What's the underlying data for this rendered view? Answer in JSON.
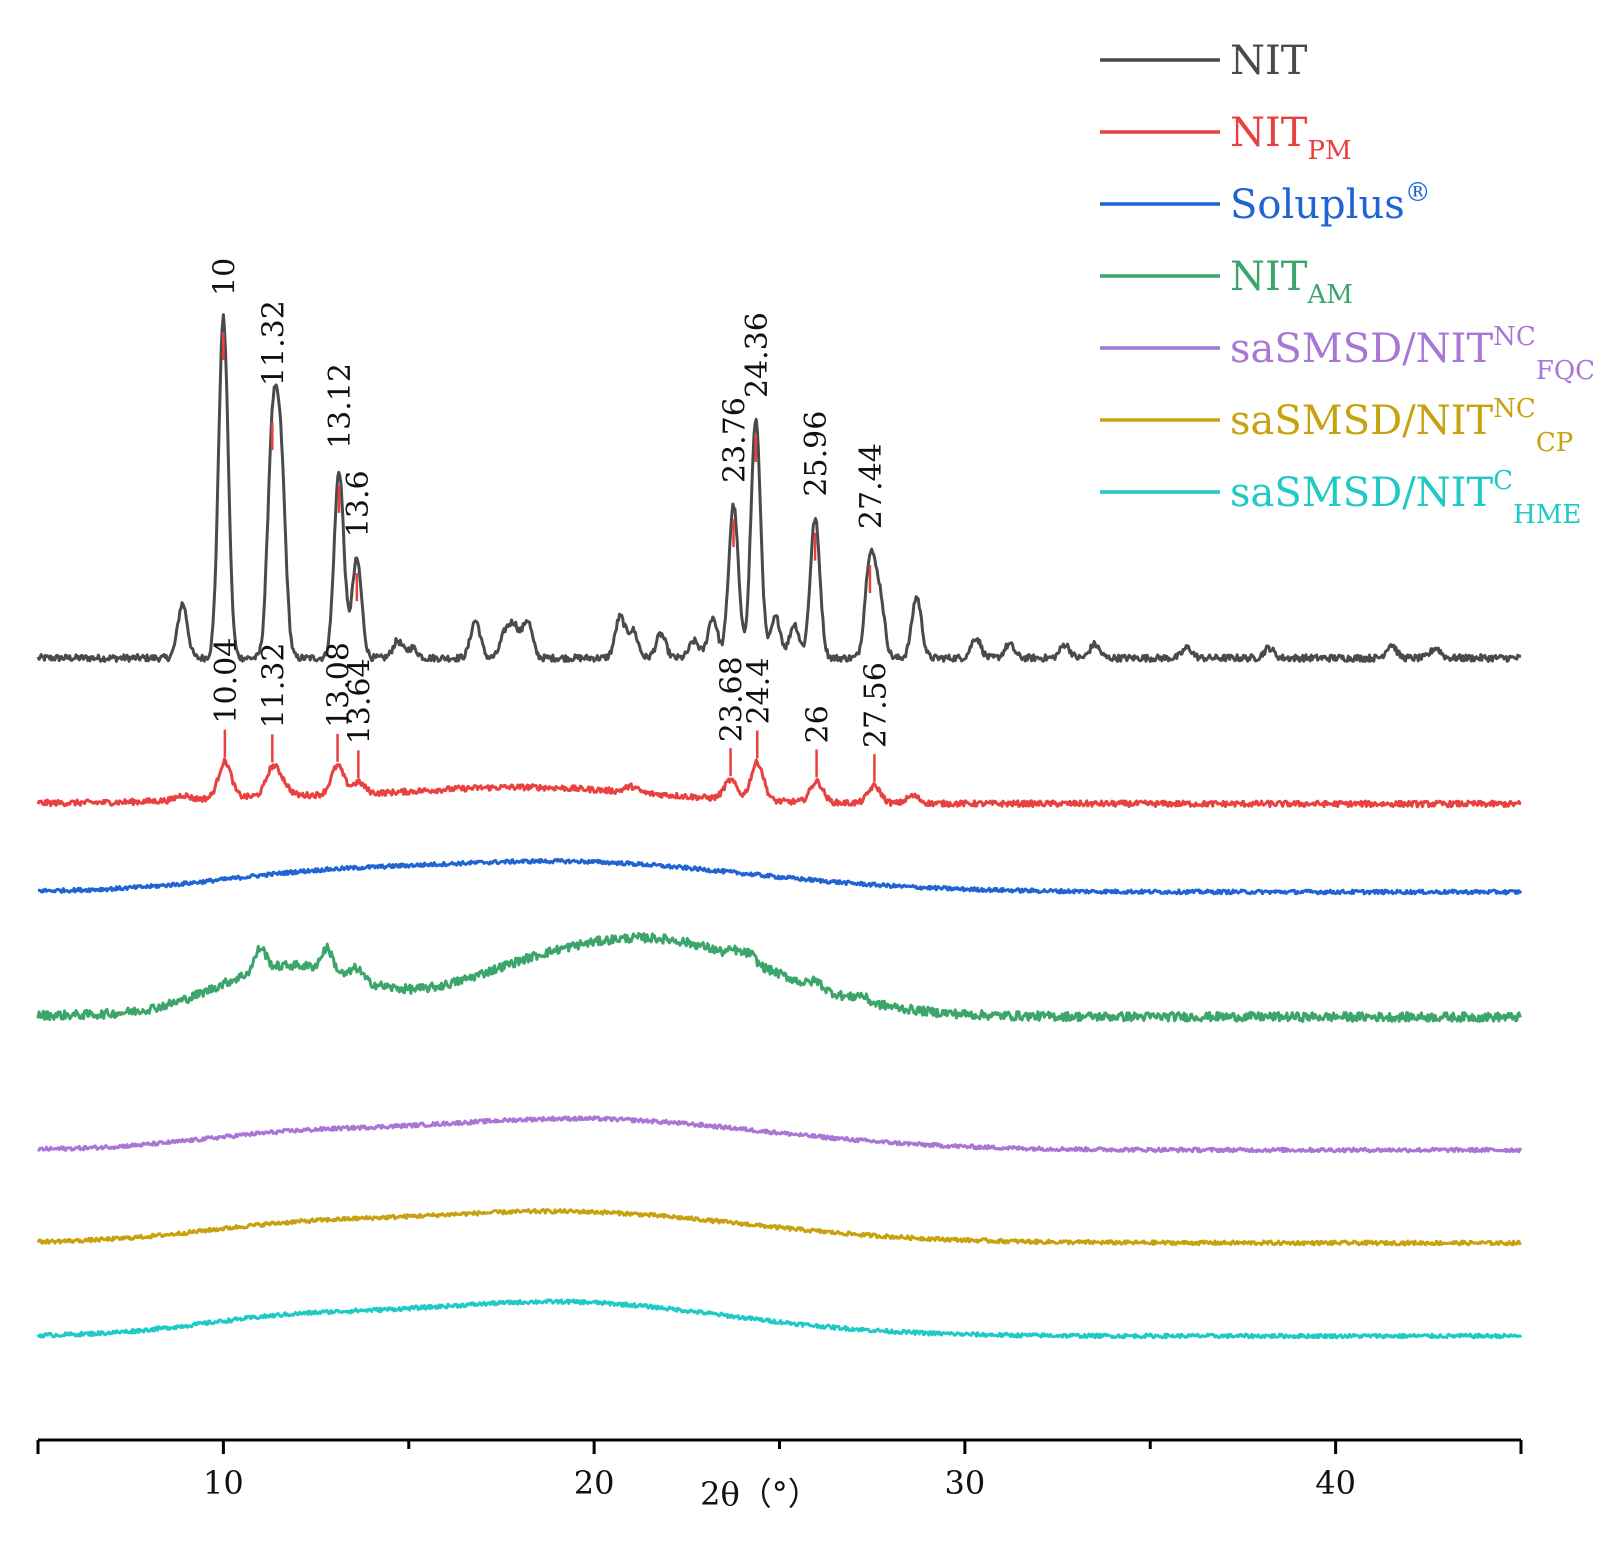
{
  "chart_data": {
    "type": "line",
    "title": "",
    "xlabel": "2θ（°）",
    "ylabel": "",
    "xlim": [
      5,
      45
    ],
    "xticks": [
      10,
      20,
      30,
      40
    ],
    "xtick_labels": [
      "10",
      "20",
      "30",
      "40"
    ],
    "grid": false,
    "legend_position": "top-right",
    "series": [
      {
        "name": "NIT",
        "sub": "",
        "sup": "",
        "color": "#4a4a4a",
        "peaks": [
          [
            8.9,
            0.16
          ],
          [
            10.0,
            1.0
          ],
          [
            11.32,
            0.62
          ],
          [
            11.55,
            0.55
          ],
          [
            13.12,
            0.55
          ],
          [
            13.6,
            0.29
          ],
          [
            14.7,
            0.05
          ],
          [
            15.1,
            0.03
          ],
          [
            16.8,
            0.11
          ],
          [
            17.6,
            0.07
          ],
          [
            17.85,
            0.09
          ],
          [
            18.2,
            0.11
          ],
          [
            20.7,
            0.12
          ],
          [
            21.05,
            0.08
          ],
          [
            21.8,
            0.07
          ],
          [
            22.7,
            0.05
          ],
          [
            23.2,
            0.12
          ],
          [
            23.76,
            0.45
          ],
          [
            24.36,
            0.7
          ],
          [
            24.9,
            0.12
          ],
          [
            25.4,
            0.1
          ],
          [
            25.96,
            0.41
          ],
          [
            27.44,
            0.29
          ],
          [
            27.7,
            0.18
          ],
          [
            28.7,
            0.18
          ],
          [
            30.3,
            0.06
          ],
          [
            31.2,
            0.04
          ],
          [
            32.7,
            0.04
          ],
          [
            33.5,
            0.04
          ],
          [
            36.0,
            0.03
          ],
          [
            38.2,
            0.03
          ],
          [
            41.5,
            0.04
          ],
          [
            42.7,
            0.03
          ]
        ],
        "hump": [],
        "baseline_left": 0,
        "baseline_right": 0,
        "noise": 0.01
      },
      {
        "name": "NIT",
        "sub": "PM",
        "sup": "",
        "color": "#e8413f",
        "peaks": [
          [
            8.9,
            0.05
          ],
          [
            10.04,
            0.38
          ],
          [
            11.32,
            0.28
          ],
          [
            11.6,
            0.12
          ],
          [
            13.08,
            0.3
          ],
          [
            13.64,
            0.12
          ],
          [
            21.0,
            0.06
          ],
          [
            23.68,
            0.2
          ],
          [
            24.4,
            0.4
          ],
          [
            26.0,
            0.22
          ],
          [
            27.56,
            0.18
          ],
          [
            28.6,
            0.08
          ]
        ],
        "hump": [
          [
            18.0,
            3.5,
            0.17
          ],
          [
            11.0,
            2.0,
            0.05
          ]
        ],
        "baseline_left": 0.05,
        "baseline_right": 0,
        "noise": 0.03
      },
      {
        "name": "Soluplus",
        "sub": "",
        "sup": "®",
        "color": "#1f64d2",
        "peaks": [],
        "hump": [
          [
            19.0,
            5.0,
            0.32
          ],
          [
            12.0,
            2.5,
            0.09
          ]
        ],
        "baseline_left": 0.02,
        "baseline_right": 0,
        "noise": 0.02
      },
      {
        "name": "NIT",
        "sub": "AM",
        "sup": "",
        "color": "#3ba56a",
        "peaks": [
          [
            11.0,
            0.2
          ],
          [
            12.8,
            0.2
          ],
          [
            13.6,
            0.1
          ],
          [
            23.8,
            0.06
          ],
          [
            24.2,
            0.08
          ],
          [
            26.0,
            0.06
          ],
          [
            27.2,
            0.05
          ]
        ],
        "hump": [
          [
            21.5,
            3.2,
            0.7
          ],
          [
            11.8,
            1.9,
            0.45
          ],
          [
            17.5,
            1.8,
            0.12
          ]
        ],
        "baseline_left": 0.12,
        "baseline_right": 0.04,
        "noise": 0.04
      },
      {
        "name": "saSMSD/NIT",
        "sub": "FQC",
        "sup": "NC",
        "color": "#a877d6",
        "peaks": [],
        "hump": [
          [
            19.5,
            5.0,
            0.33
          ],
          [
            11.5,
            2.5,
            0.1
          ]
        ],
        "baseline_left": 0,
        "baseline_right": 0,
        "noise": 0.02
      },
      {
        "name": "saSMSD/NIT",
        "sub": "CP",
        "sup": "NC",
        "color": "#c8a20e",
        "peaks": [],
        "hump": [
          [
            19.0,
            5.0,
            0.33
          ],
          [
            11.5,
            2.5,
            0.1
          ]
        ],
        "baseline_left": 0.02,
        "baseline_right": 0,
        "noise": 0.02
      },
      {
        "name": "saSMSD/NIT",
        "sub": "HME",
        "sup": "C",
        "color": "#1ec9c6",
        "peaks": [],
        "hump": [
          [
            19.0,
            4.5,
            0.36
          ],
          [
            11.5,
            2.5,
            0.13
          ]
        ],
        "baseline_left": 0,
        "baseline_right": 0,
        "noise": 0.02
      }
    ],
    "peak_labels": [
      {
        "series": 0,
        "x": 10,
        "text": "10"
      },
      {
        "series": 0,
        "x": 11.32,
        "text": "11.32"
      },
      {
        "series": 0,
        "x": 13.12,
        "text": "13.12"
      },
      {
        "series": 0,
        "x": 13.6,
        "text": "13.6"
      },
      {
        "series": 0,
        "x": 23.76,
        "text": "23.76"
      },
      {
        "series": 0,
        "x": 24.36,
        "text": "24.36"
      },
      {
        "series": 0,
        "x": 25.96,
        "text": "25.96"
      },
      {
        "series": 0,
        "x": 27.44,
        "text": "27.44"
      },
      {
        "series": 1,
        "x": 10.04,
        "text": "10.04"
      },
      {
        "series": 1,
        "x": 11.32,
        "text": "11.32"
      },
      {
        "series": 1,
        "x": 13.08,
        "text": "13.08"
      },
      {
        "series": 1,
        "x": 13.64,
        "text": "13.64"
      },
      {
        "series": 1,
        "x": 23.68,
        "text": "23.68"
      },
      {
        "series": 1,
        "x": 24.4,
        "text": "24.4"
      },
      {
        "series": 1,
        "x": 26,
        "text": "26"
      },
      {
        "series": 1,
        "x": 27.56,
        "text": "27.56"
      }
    ]
  }
}
